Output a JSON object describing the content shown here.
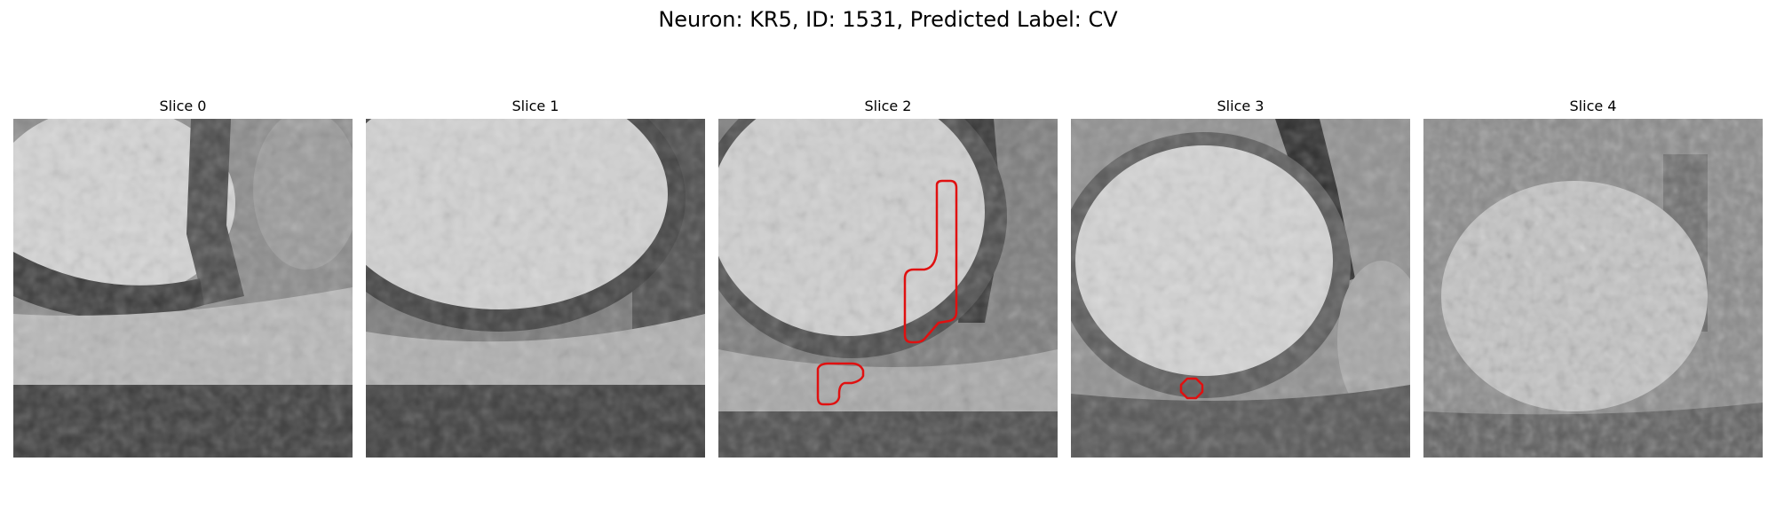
{
  "title": "Neuron: KR5, ID: 1531, Predicted Label: CV",
  "annotation_color": "#e01010",
  "panels": [
    {
      "label": "Slice 0",
      "roi_count": 0
    },
    {
      "label": "Slice 1",
      "roi_count": 0
    },
    {
      "label": "Slice 2",
      "roi_count": 2
    },
    {
      "label": "Slice 3",
      "roi_count": 1
    },
    {
      "label": "Slice 4",
      "roi_count": 0
    }
  ]
}
